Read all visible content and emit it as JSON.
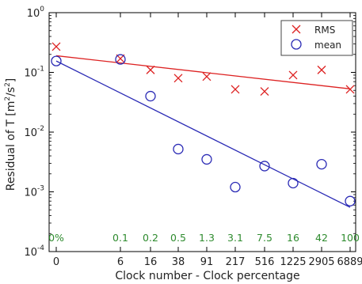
{
  "chart_data": {
    "type": "scatter",
    "xlabel": "Clock number - Clock percentage",
    "ylabel": "Residual of T [m^2/s^2]",
    "ylabel_parts": {
      "main": "Residual of T [m",
      "sup1": "2",
      "mid": "/s",
      "sup2": "2",
      "end": "]"
    },
    "yscale": "log",
    "ylim": [
      0.0001,
      1
    ],
    "ytick_labels": [
      {
        "base": "10",
        "exp": "-4"
      },
      {
        "base": "10",
        "exp": "-3"
      },
      {
        "base": "10",
        "exp": "-2"
      },
      {
        "base": "10",
        "exp": "-1"
      },
      {
        "base": "10",
        "exp": "0"
      }
    ],
    "categories": [
      "0",
      "6",
      "16",
      "38",
      "91",
      "217",
      "516",
      "1225",
      "2905",
      "6889"
    ],
    "percent_labels": [
      "0%",
      "0.1",
      "0.2",
      "0.5",
      "1.3",
      "3.1",
      "7.5",
      "16",
      "42",
      "100"
    ],
    "legend_position": "top-right",
    "series": [
      {
        "name": "RMS",
        "marker": "x",
        "color": "#dd2222",
        "values": [
          0.27,
          0.17,
          0.11,
          0.08,
          0.085,
          0.052,
          0.048,
          0.09,
          0.11,
          0.052
        ],
        "fit": [
          0.19,
          0.053
        ]
      },
      {
        "name": "mean",
        "marker": "circle",
        "color": "#2a2ab5",
        "values": [
          0.155,
          0.165,
          0.04,
          0.0052,
          0.0035,
          0.0012,
          0.0027,
          0.0014,
          0.0029,
          0.0007
        ],
        "fit": [
          0.155,
          0.00055
        ]
      }
    ]
  }
}
